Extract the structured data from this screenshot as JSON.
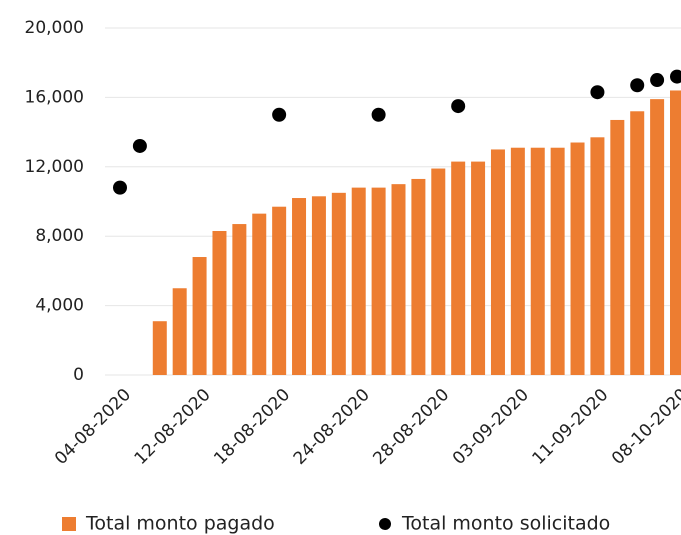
{
  "chart_data": {
    "type": "bar",
    "categories": [
      "04-08-2020",
      null,
      null,
      null,
      "12-08-2020",
      null,
      null,
      null,
      "18-08-2020",
      null,
      null,
      null,
      "24-08-2020",
      null,
      null,
      null,
      "28-08-2020",
      null,
      null,
      null,
      "03-09-2020",
      null,
      null,
      null,
      "11-09-2020",
      null,
      null,
      null,
      "08-10-2020"
    ],
    "series": [
      {
        "name": "Total monto pagado",
        "type": "bar",
        "color": "#ed7d31",
        "values": [
          null,
          null,
          3100,
          5000,
          6800,
          8300,
          8700,
          9300,
          9700,
          10200,
          10300,
          10500,
          10800,
          10800,
          11000,
          11300,
          11900,
          12300,
          12300,
          13000,
          13100,
          13100,
          13100,
          13400,
          13700,
          14700,
          15200,
          15900,
          16400
        ]
      },
      {
        "name": "Total monto solicitado",
        "type": "scatter",
        "color": "#000000",
        "values": [
          10800,
          13200,
          null,
          null,
          null,
          null,
          null,
          null,
          15000,
          null,
          null,
          null,
          null,
          15000,
          null,
          null,
          null,
          15500,
          null,
          null,
          null,
          null,
          null,
          null,
          16300,
          null,
          16700,
          17000,
          17200
        ]
      }
    ],
    "ylim": [
      0,
      20000
    ],
    "yticks": [
      0,
      {
        "value": 4000,
        "label": "4,000"
      },
      {
        "value": 8000,
        "label": "8,000"
      },
      {
        "value": 12000,
        "label": "12,000"
      },
      {
        "value": 16000,
        "label": "16,000"
      },
      {
        "value": 20000,
        "label": "20,000"
      }
    ],
    "grid": true,
    "legend": "bottom"
  }
}
